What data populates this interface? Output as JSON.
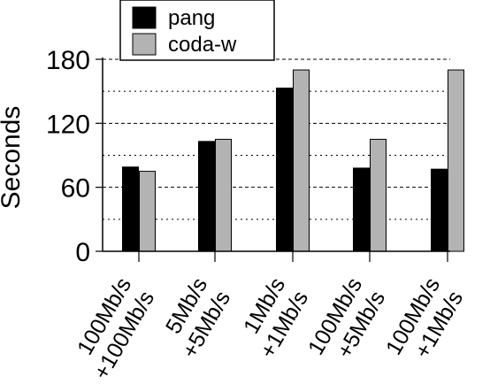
{
  "chart_data": {
    "type": "bar",
    "title": "",
    "xlabel": "",
    "ylabel": "Seconds",
    "ylim": [
      0,
      180
    ],
    "yticks": [
      0,
      60,
      120,
      180
    ],
    "grid": "horizontal dashed",
    "legend_placement": "top-left",
    "categories": [
      [
        "100Mb/s",
        "+100Mb/s"
      ],
      [
        "5Mb/s",
        "+5Mb/s"
      ],
      [
        "1Mb/s",
        "+1Mb/s"
      ],
      [
        "100Mb/s",
        "+5Mb/s"
      ],
      [
        "100Mb/s",
        "+1Mb/s"
      ]
    ],
    "series": [
      {
        "name": "pang",
        "color": "#000000",
        "values": [
          79,
          103,
          153,
          78,
          77
        ]
      },
      {
        "name": "coda-w",
        "color": "#b3b3b3",
        "values": [
          75,
          105,
          170,
          105,
          170
        ]
      }
    ]
  }
}
